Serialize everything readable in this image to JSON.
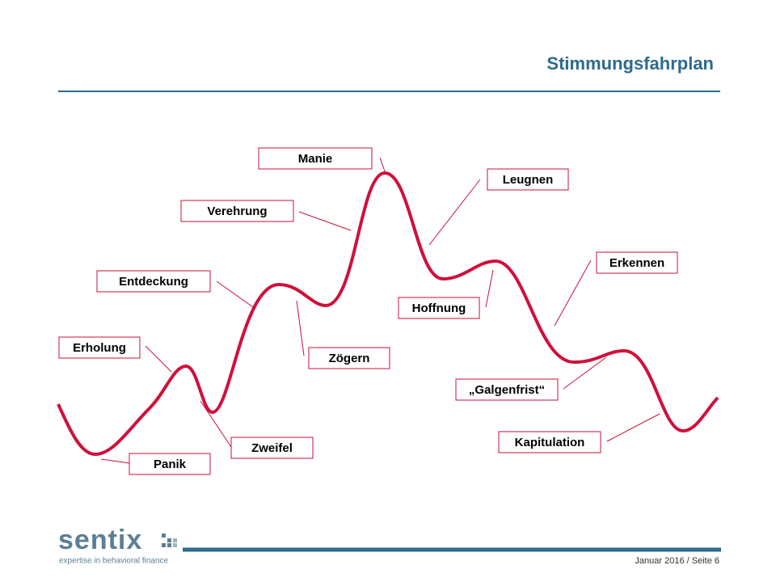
{
  "title": "Stimmungsfahrplan",
  "phases": [
    "Manie",
    "Verehrung",
    "Entdeckung",
    "Erholung",
    "Panik",
    "Zweifel",
    "Zögern",
    "Leugnen",
    "Hoffnung",
    "Erkennen",
    "„Galgenfrist“",
    "Kapitulation"
  ],
  "footer": {
    "logo": "sentix",
    "tagline": "expertise in behavioral finance",
    "date_page": "Januar 2016 / Seite 6"
  }
}
